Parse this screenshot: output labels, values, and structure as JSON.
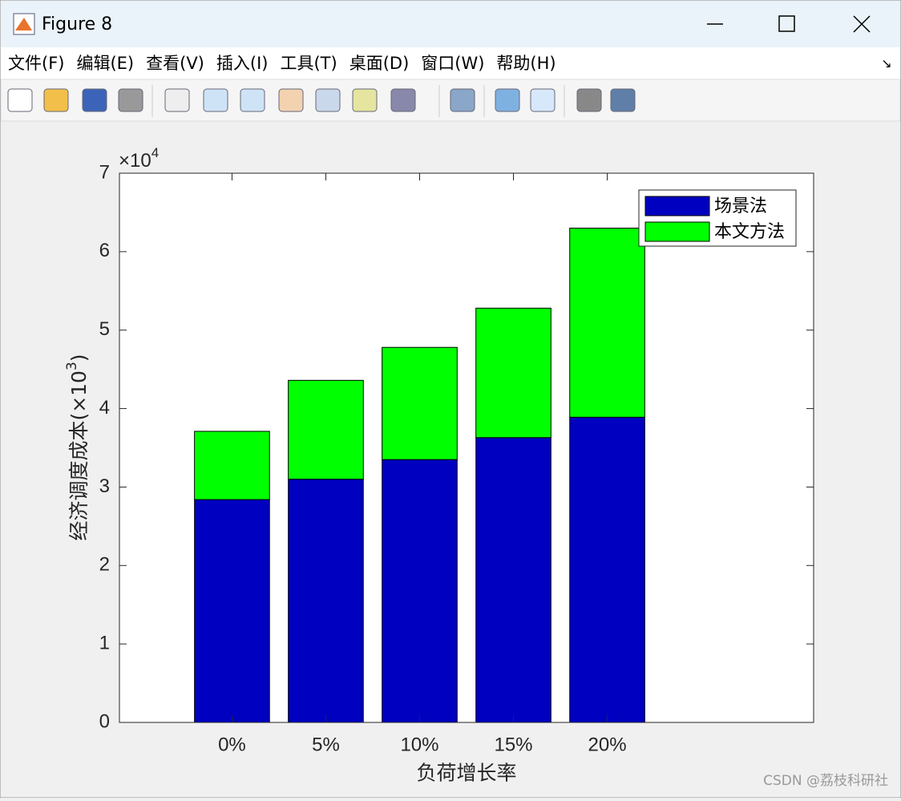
{
  "window": {
    "title": "Figure 8",
    "menu": [
      "文件(F)",
      "编辑(E)",
      "查看(V)",
      "插入(I)",
      "工具(T)",
      "桌面(D)",
      "窗口(W)",
      "帮助(H)"
    ]
  },
  "chart_data": {
    "type": "bar",
    "stacked": true,
    "xlabel": "负荷增长率",
    "ylabel": [
      "经济调度成本(×10",
      "3",
      ")"
    ],
    "y_multiplier": [
      "×10",
      "4"
    ],
    "categories": [
      "0%",
      "5%",
      "10%",
      "15%",
      "20%"
    ],
    "series": [
      {
        "name": "场景法",
        "color": "#0000c0",
        "values": [
          2.84,
          3.1,
          3.35,
          3.63,
          3.89
        ]
      },
      {
        "name": "本文方法",
        "color": "#00ff00",
        "values": [
          0.87,
          1.26,
          1.43,
          1.65,
          2.41
        ]
      }
    ],
    "ylim": [
      0,
      7
    ],
    "yticks": [
      0,
      1,
      2,
      3,
      4,
      5,
      6,
      7
    ],
    "legend": "upper right",
    "grid": false
  },
  "watermark": "CSDN @荔枝科研社"
}
